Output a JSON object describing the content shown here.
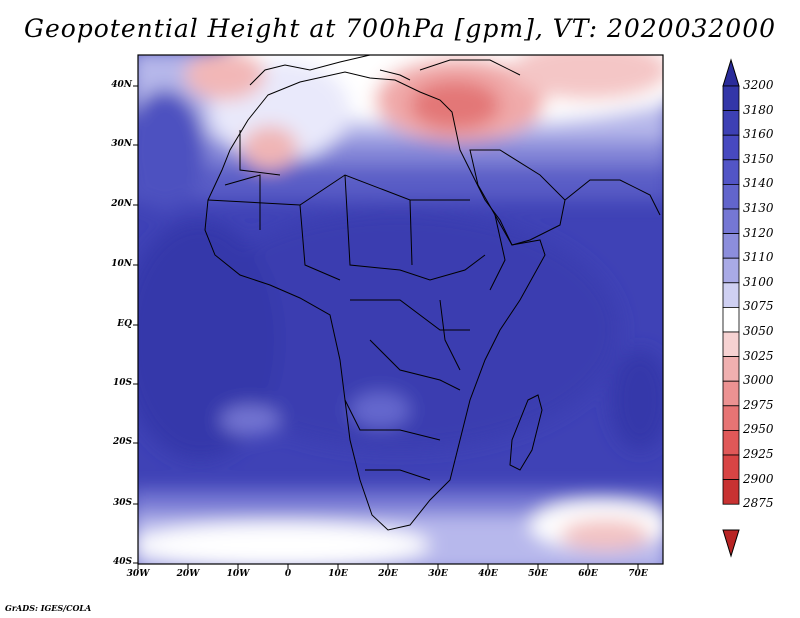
{
  "title": "Geopotential Height at 700hPa [gpm], VT: 2020032000",
  "credit": "GrADS: IGES/COLA",
  "map": {
    "region": "Africa",
    "lon_range": [
      -30,
      75
    ],
    "lat_range": [
      -40,
      45
    ],
    "variable": "Geopotential Height",
    "level": "700hPa",
    "units": "gpm",
    "valid_time": "2020032000",
    "lat_ticks": [
      "40N",
      "30N",
      "20N",
      "10N",
      "EQ",
      "10S",
      "20S",
      "30S",
      "40S"
    ],
    "lon_ticks": [
      "30W",
      "20W",
      "10W",
      "0",
      "10E",
      "20E",
      "30E",
      "40E",
      "50E",
      "60E",
      "70E"
    ],
    "lat_tick_values": [
      40,
      30,
      20,
      10,
      0,
      -10,
      -20,
      -30,
      -40
    ],
    "lon_tick_values": [
      -30,
      -20,
      -10,
      0,
      10,
      20,
      30,
      40,
      50,
      60,
      70
    ]
  },
  "colorbar": {
    "labels": [
      "3200",
      "3180",
      "3160",
      "3150",
      "3140",
      "3130",
      "3120",
      "3110",
      "3100",
      "3075",
      "3050",
      "3025",
      "3000",
      "2975",
      "2950",
      "2925",
      "2900",
      "2875"
    ],
    "colors": [
      "#2a2c9a",
      "#3336a8",
      "#3d40b4",
      "#4749c0",
      "#5255c6",
      "#6265cc",
      "#7577d4",
      "#8c8edc",
      "#a9aae6",
      "#cfd0f2",
      "#ffffff",
      "#f6d2d2",
      "#f0b0b0",
      "#ec9292",
      "#e77474",
      "#e05858",
      "#d84444",
      "#c83232",
      "#b82424"
    ],
    "top_color": "#2a2c9a",
    "bottom_color": "#b82424"
  }
}
